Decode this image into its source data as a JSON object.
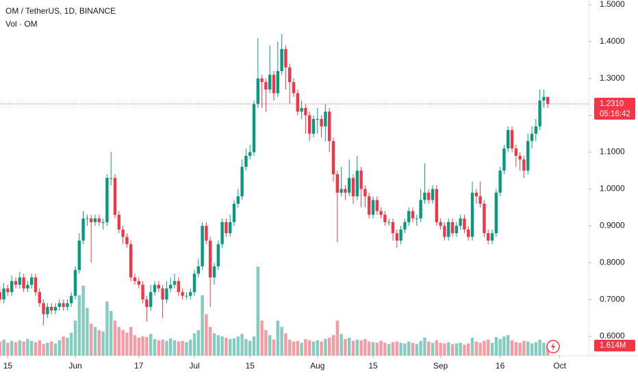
{
  "chart_data": {
    "type": "candlestick",
    "title": "OM / TetherUS, 1D, BINANCE",
    "volume_title": "Vol · OM",
    "x": [
      "05-13",
      "05-14",
      "05-15",
      "05-16",
      "05-17",
      "05-18",
      "05-19",
      "05-20",
      "05-21",
      "05-22",
      "05-23",
      "05-24",
      "05-25",
      "05-26",
      "05-27",
      "05-28",
      "05-29",
      "05-30",
      "05-31",
      "06-01",
      "06-02",
      "06-03",
      "06-04",
      "06-05",
      "06-06",
      "06-07",
      "06-08",
      "06-09",
      "06-10",
      "06-11",
      "06-12",
      "06-13",
      "06-14",
      "06-15",
      "06-16",
      "06-17",
      "06-18",
      "06-19",
      "06-20",
      "06-21",
      "06-22",
      "06-23",
      "06-24",
      "06-25",
      "06-26",
      "06-27",
      "06-28",
      "06-29",
      "06-30",
      "07-01",
      "07-02",
      "07-03",
      "07-04",
      "07-05",
      "07-06",
      "07-07",
      "07-08",
      "07-09",
      "07-10",
      "07-11",
      "07-12",
      "07-13",
      "07-14",
      "07-15",
      "07-16",
      "07-17",
      "07-18",
      "07-19",
      "07-20",
      "07-21",
      "07-22",
      "07-23",
      "07-24",
      "07-25",
      "07-26",
      "07-27",
      "07-28",
      "07-29",
      "07-30",
      "07-31",
      "08-01",
      "08-02",
      "08-03",
      "08-04",
      "08-05",
      "08-06",
      "08-07",
      "08-08",
      "08-09",
      "08-10",
      "08-11",
      "08-12",
      "08-13",
      "08-14",
      "08-15",
      "08-16",
      "08-17",
      "08-18",
      "08-19",
      "08-20",
      "08-21",
      "08-22",
      "08-23",
      "08-24",
      "08-25",
      "08-26",
      "08-27",
      "08-28",
      "08-29",
      "08-30",
      "08-31",
      "09-01",
      "09-02",
      "09-03",
      "09-04",
      "09-05",
      "09-06",
      "09-07",
      "09-08",
      "09-09",
      "09-10",
      "09-11",
      "09-12",
      "09-13",
      "09-14",
      "09-15",
      "09-16",
      "09-17",
      "09-18",
      "09-19",
      "09-20",
      "09-21",
      "09-22",
      "09-23",
      "09-24",
      "09-25",
      "09-26",
      "09-27",
      "09-28"
    ],
    "open": [
      0.72,
      0.7,
      0.73,
      0.72,
      0.75,
      0.74,
      0.76,
      0.73,
      0.74,
      0.76,
      0.72,
      0.69,
      0.66,
      0.68,
      0.67,
      0.68,
      0.69,
      0.68,
      0.69,
      0.71,
      0.78,
      0.86,
      0.92,
      0.92,
      0.91,
      0.92,
      0.91,
      0.91,
      1.03,
      1.03,
      0.93,
      0.89,
      0.87,
      0.85,
      0.76,
      0.75,
      0.74,
      0.7,
      0.68,
      0.72,
      0.74,
      0.73,
      0.7,
      0.73,
      0.74,
      0.75,
      0.72,
      0.71,
      0.71,
      0.72,
      0.77,
      0.79,
      0.9,
      0.86,
      0.76,
      0.79,
      0.85,
      0.91,
      0.88,
      0.91,
      0.96,
      0.98,
      1.06,
      1.09,
      1.1,
      1.23,
      1.3,
      1.29,
      1.27,
      1.31,
      1.26,
      1.32,
      1.38,
      1.33,
      1.29,
      1.26,
      1.21,
      1.22,
      1.2,
      1.15,
      1.19,
      1.19,
      1.17,
      1.21,
      1.13,
      1.04,
      0.99,
      1.0,
      0.99,
      1.03,
      0.98,
      1.05,
      1.0,
      0.98,
      0.93,
      0.97,
      0.94,
      0.93,
      0.91,
      0.91,
      0.88,
      0.86,
      0.89,
      0.91,
      0.94,
      0.92,
      0.92,
      0.97,
      0.99,
      0.97,
      1.0,
      0.91,
      0.9,
      0.87,
      0.91,
      0.88,
      0.9,
      0.92,
      0.89,
      0.87,
      0.99,
      0.98,
      0.96,
      0.88,
      0.86,
      0.88,
      0.99,
      1.05,
      1.11,
      1.16,
      1.11,
      1.09,
      1.08,
      1.05,
      1.13,
      1.15,
      1.17,
      1.24,
      1.25
    ],
    "high": [
      0.735,
      0.745,
      0.74,
      0.765,
      0.76,
      0.775,
      0.77,
      0.75,
      0.77,
      0.77,
      0.73,
      0.7,
      0.69,
      0.69,
      0.69,
      0.7,
      0.7,
      0.7,
      0.72,
      0.79,
      0.88,
      0.94,
      0.93,
      0.93,
      0.93,
      0.93,
      0.92,
      1.04,
      1.1,
      1.04,
      0.94,
      0.9,
      0.88,
      0.86,
      0.77,
      0.76,
      0.75,
      0.71,
      0.74,
      0.75,
      0.75,
      0.74,
      0.75,
      0.76,
      0.77,
      0.76,
      0.73,
      0.72,
      0.73,
      0.78,
      0.81,
      0.91,
      0.91,
      0.87,
      0.8,
      0.86,
      0.92,
      0.92,
      0.93,
      0.97,
      1.0,
      1.08,
      1.11,
      1.12,
      1.24,
      1.41,
      1.31,
      1.3,
      1.39,
      1.32,
      1.4,
      1.42,
      1.39,
      1.34,
      1.3,
      1.27,
      1.24,
      1.23,
      1.21,
      1.2,
      1.22,
      1.2,
      1.23,
      1.22,
      1.14,
      1.05,
      1.06,
      1.01,
      1.08,
      1.04,
      1.09,
      1.06,
      1.01,
      0.99,
      0.98,
      0.98,
      0.95,
      0.94,
      0.92,
      0.92,
      0.89,
      0.9,
      0.92,
      0.95,
      0.95,
      0.93,
      1.0,
      1.07,
      1.0,
      1.01,
      1.01,
      0.92,
      0.91,
      0.92,
      0.92,
      0.91,
      0.93,
      0.93,
      0.9,
      1.02,
      1.0,
      1.02,
      0.97,
      0.89,
      0.89,
      1.0,
      1.06,
      1.12,
      1.17,
      1.17,
      1.12,
      1.1,
      1.09,
      1.15,
      1.17,
      1.19,
      1.27,
      1.27,
      1.25
    ],
    "low": [
      0.69,
      0.69,
      0.71,
      0.71,
      0.73,
      0.73,
      0.72,
      0.72,
      0.73,
      0.71,
      0.68,
      0.63,
      0.65,
      0.66,
      0.66,
      0.67,
      0.67,
      0.67,
      0.68,
      0.7,
      0.77,
      0.85,
      0.9,
      0.8,
      0.9,
      0.9,
      0.89,
      0.9,
      1.01,
      0.92,
      0.88,
      0.85,
      0.84,
      0.75,
      0.74,
      0.73,
      0.69,
      0.64,
      0.67,
      0.71,
      0.72,
      0.65,
      0.69,
      0.72,
      0.73,
      0.71,
      0.7,
      0.7,
      0.7,
      0.71,
      0.76,
      0.78,
      0.85,
      0.68,
      0.74,
      0.78,
      0.84,
      0.87,
      0.87,
      0.9,
      0.95,
      0.97,
      1.05,
      1.08,
      1.09,
      1.22,
      1.22,
      1.21,
      1.26,
      1.24,
      1.25,
      1.31,
      1.27,
      1.23,
      1.25,
      1.2,
      1.19,
      1.15,
      1.13,
      1.14,
      1.15,
      1.14,
      1.13,
      1.1,
      1.02,
      0.855,
      0.98,
      0.97,
      0.98,
      0.96,
      0.97,
      0.95,
      0.95,
      0.92,
      0.92,
      0.93,
      0.92,
      0.9,
      0.9,
      0.86,
      0.84,
      0.85,
      0.88,
      0.9,
      0.91,
      0.9,
      0.91,
      0.96,
      0.96,
      0.96,
      0.9,
      0.89,
      0.86,
      0.86,
      0.87,
      0.87,
      0.89,
      0.88,
      0.86,
      0.86,
      0.96,
      0.95,
      0.87,
      0.85,
      0.85,
      0.87,
      0.98,
      1.04,
      1.1,
      1.1,
      1.06,
      1.05,
      1.03,
      1.04,
      1.11,
      1.13,
      1.16,
      1.22,
      1.22
    ],
    "close": [
      0.7,
      0.73,
      0.72,
      0.75,
      0.74,
      0.76,
      0.73,
      0.74,
      0.76,
      0.72,
      0.69,
      0.66,
      0.68,
      0.67,
      0.68,
      0.69,
      0.68,
      0.69,
      0.71,
      0.78,
      0.86,
      0.92,
      0.92,
      0.91,
      0.92,
      0.91,
      0.91,
      1.03,
      1.03,
      0.93,
      0.89,
      0.87,
      0.85,
      0.76,
      0.75,
      0.74,
      0.7,
      0.68,
      0.72,
      0.74,
      0.73,
      0.7,
      0.73,
      0.74,
      0.75,
      0.72,
      0.71,
      0.71,
      0.72,
      0.77,
      0.79,
      0.9,
      0.86,
      0.76,
      0.79,
      0.85,
      0.91,
      0.88,
      0.91,
      0.96,
      0.98,
      1.06,
      1.09,
      1.1,
      1.23,
      1.3,
      1.29,
      1.27,
      1.31,
      1.26,
      1.32,
      1.38,
      1.33,
      1.29,
      1.26,
      1.21,
      1.22,
      1.2,
      1.15,
      1.19,
      1.19,
      1.17,
      1.21,
      1.13,
      1.04,
      0.99,
      1.0,
      0.99,
      1.03,
      0.98,
      1.05,
      1.0,
      0.98,
      0.93,
      0.97,
      0.94,
      0.93,
      0.91,
      0.91,
      0.88,
      0.86,
      0.89,
      0.91,
      0.94,
      0.92,
      0.92,
      0.97,
      0.99,
      0.97,
      1.0,
      0.91,
      0.9,
      0.87,
      0.91,
      0.88,
      0.9,
      0.92,
      0.89,
      0.87,
      0.99,
      0.98,
      0.96,
      0.88,
      0.86,
      0.88,
      0.99,
      1.05,
      1.11,
      1.16,
      1.11,
      1.09,
      1.08,
      1.05,
      1.13,
      1.15,
      1.17,
      1.24,
      1.25,
      1.231
    ],
    "volume": [
      2.2,
      2.5,
      2.0,
      2.3,
      2.1,
      2.4,
      2.2,
      2.6,
      2.3,
      2.1,
      2.4,
      1.8,
      2.0,
      2.2,
      1.9,
      2.4,
      3.0,
      2.8,
      3.6,
      5.5,
      9.5,
      11.0,
      7.5,
      5.0,
      4.5,
      4.0,
      3.8,
      8.5,
      7.0,
      5.5,
      4.5,
      4.0,
      3.6,
      4.5,
      3.2,
      2.8,
      3.0,
      2.9,
      3.4,
      2.6,
      2.4,
      2.5,
      2.3,
      2.7,
      2.4,
      2.2,
      2.3,
      2.1,
      2.5,
      3.5,
      4.0,
      9.5,
      6.5,
      4.5,
      3.5,
      3.2,
      3.0,
      2.8,
      2.6,
      2.7,
      3.0,
      3.4,
      2.6,
      2.3,
      3.0,
      14.0,
      5.5,
      4.0,
      3.2,
      2.5,
      5.5,
      4.5,
      3.5,
      2.5,
      2.2,
      2.3,
      2.0,
      2.6,
      2.4,
      2.2,
      2.4,
      2.2,
      2.6,
      2.8,
      3.2,
      5.5,
      3.4,
      2.6,
      2.8,
      2.3,
      2.5,
      2.4,
      2.6,
      2.2,
      2.1,
      2.0,
      2.3,
      2.0,
      1.8,
      2.1,
      2.2,
      2.0,
      1.9,
      2.2,
      2.0,
      1.8,
      2.3,
      2.8,
      2.2,
      2.0,
      2.4,
      2.0,
      1.9,
      2.1,
      1.8,
      1.9,
      2.0,
      1.7,
      1.9,
      2.8,
      2.2,
      2.0,
      2.3,
      2.5,
      2.0,
      2.9,
      2.6,
      3.0,
      3.2,
      2.4,
      2.1,
      2.0,
      2.3,
      2.2,
      1.9,
      2.1,
      2.5,
      2.0,
      1.614
    ],
    "last_price": {
      "value": 1.231,
      "label": "1.2310"
    },
    "countdown": "05:16:42",
    "last_volume_label": "1.614M",
    "up_color": "#089981",
    "down_color": "#f23645",
    "ylim": [
      0.548,
      1.513
    ],
    "yticks": [
      {
        "value": 0.6,
        "label": "0.6000"
      },
      {
        "value": 0.7,
        "label": "0.7000"
      },
      {
        "value": 0.8,
        "label": "0.8000"
      },
      {
        "value": 0.9,
        "label": "0.9000"
      },
      {
        "value": 1.0,
        "label": "1.0000"
      },
      {
        "value": 1.1,
        "label": "1.1000"
      },
      {
        "value": 1.2,
        "label": "1.2000"
      },
      {
        "value": 1.3,
        "label": "1.3000"
      },
      {
        "value": 1.4,
        "label": "1.4000"
      },
      {
        "value": 1.5,
        "label": "1.5000"
      }
    ],
    "y2lim": [
      0,
      56
    ],
    "xticks": [
      {
        "value": "05-15",
        "label": "15"
      },
      {
        "value": "06-01",
        "label": "Jun"
      },
      {
        "value": "06-17",
        "label": "17"
      },
      {
        "value": "07-01",
        "label": "Jul"
      },
      {
        "value": "07-15",
        "label": "15"
      },
      {
        "value": "08-01",
        "label": "Aug"
      },
      {
        "value": "08-15",
        "label": "15"
      },
      {
        "value": "09-01",
        "label": "Sep"
      },
      {
        "value": "09-16",
        "label": "16"
      },
      {
        "value": "10-01",
        "label": "Oct"
      }
    ],
    "grid": false
  }
}
